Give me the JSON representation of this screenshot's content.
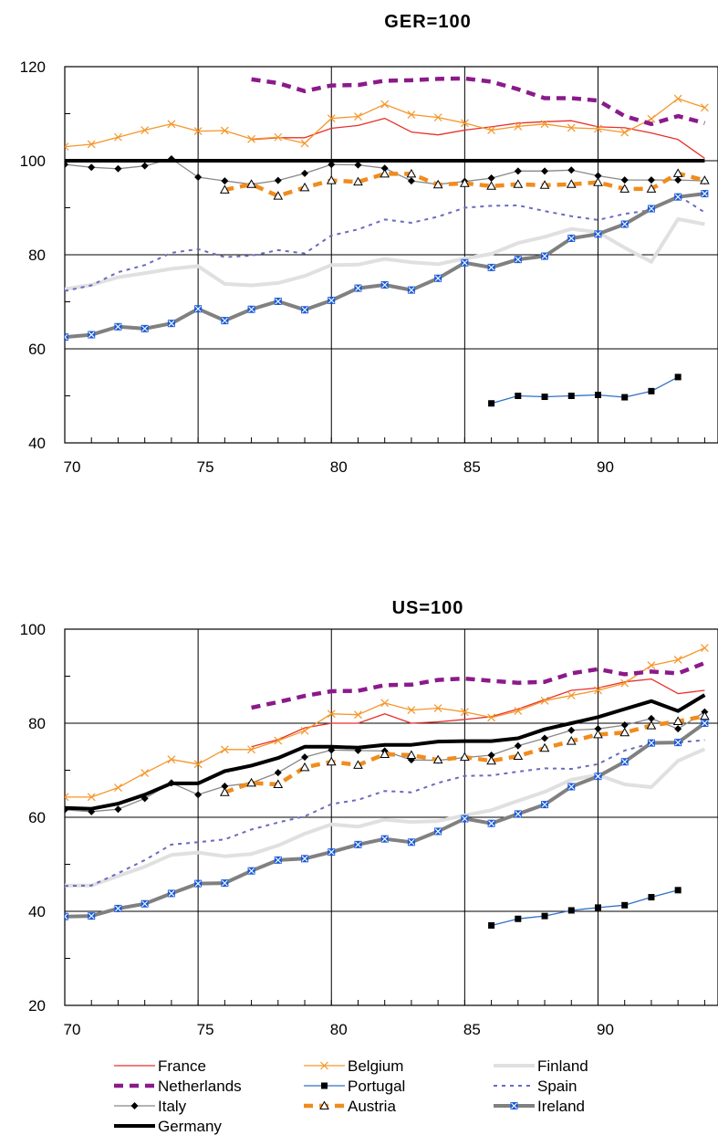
{
  "chart_data": [
    {
      "type": "line",
      "title": "GER=100",
      "xlabel": "",
      "ylabel": "",
      "x_ticks": [
        "70",
        "75",
        "80",
        "85",
        "90"
      ],
      "y_ticks": [
        "40",
        "60",
        "80",
        "100",
        "120"
      ],
      "xlim": [
        70,
        94.5
      ],
      "ylim": [
        40,
        120
      ],
      "grid": true,
      "series": [
        {
          "name": "France",
          "color": "#e8302a",
          "style": "thin",
          "x": [
            77,
            78,
            79,
            80,
            81,
            82,
            83,
            84,
            85,
            86,
            87,
            88,
            89,
            90,
            91,
            92,
            93,
            94
          ],
          "y": [
            104.5,
            104.9,
            104.9,
            106.9,
            107.5,
            109,
            106.1,
            105.5,
            106.5,
            107.2,
            108,
            108.3,
            108.5,
            107.2,
            107,
            105.9,
            104.5,
            100.5
          ]
        },
        {
          "name": "Belgium",
          "color": "#f5962a",
          "style": "thin",
          "marker": "x",
          "x": [
            70,
            71,
            72,
            73,
            74,
            75,
            76,
            77,
            78,
            79,
            80,
            81,
            82,
            83,
            84,
            85,
            86,
            87,
            88,
            89,
            90,
            91,
            92,
            93,
            94
          ],
          "y": [
            103,
            103.5,
            105,
            106.5,
            107.8,
            106.3,
            106.4,
            104.6,
            105,
            103.7,
            109,
            109.4,
            112,
            109.8,
            109.2,
            108,
            106.5,
            107.3,
            107.8,
            107,
            106.8,
            106,
            108.9,
            113.2,
            111.3
          ]
        },
        {
          "name": "Finland",
          "color": "#e0e0e0",
          "style": "thick",
          "x": [
            70,
            71,
            72,
            73,
            74,
            75,
            76,
            77,
            78,
            79,
            80,
            81,
            82,
            83,
            84,
            85,
            86,
            87,
            88,
            89,
            90,
            91,
            92,
            93,
            94
          ],
          "y": [
            72.7,
            73.6,
            75.2,
            76.1,
            77,
            77.6,
            73.8,
            73.5,
            74,
            75.5,
            77.8,
            77.9,
            79.1,
            78.4,
            78,
            79.2,
            80.2,
            82.5,
            83.8,
            85.5,
            84.8,
            81.5,
            78.5,
            87.6,
            86.5
          ]
        },
        {
          "name": "Netherlands",
          "color": "#8b1a8b",
          "style": "dashed-thick",
          "x": [
            77,
            78,
            79,
            80,
            81,
            82,
            83,
            84,
            85,
            86,
            87,
            88,
            89,
            90,
            91,
            92,
            93,
            94
          ],
          "y": [
            117.3,
            116.5,
            114.8,
            116,
            116.1,
            117,
            117.1,
            117.4,
            117.5,
            116.8,
            115.2,
            113.3,
            113.3,
            112.8,
            109.5,
            107.8,
            109.5,
            108
          ]
        },
        {
          "name": "Portugal",
          "color": "#3070c8",
          "style": "thin",
          "marker": "square",
          "x": [
            86,
            87,
            88,
            89,
            90,
            91,
            92,
            93
          ],
          "y": [
            48.4,
            50,
            49.8,
            50,
            50.2,
            49.7,
            51,
            54
          ]
        },
        {
          "name": "Spain",
          "color": "#6a6ac0",
          "style": "dotted",
          "x": [
            70,
            71,
            72,
            73,
            74,
            75,
            76,
            77,
            78,
            79,
            80,
            81,
            82,
            83,
            84,
            85,
            86,
            87,
            88,
            89,
            90,
            91,
            92,
            93,
            94
          ],
          "y": [
            72.3,
            73.5,
            76.3,
            77.8,
            80.4,
            81.2,
            79.5,
            79.8,
            81,
            80.3,
            84.1,
            85.4,
            87.5,
            86.8,
            88.1,
            90,
            90.4,
            90.5,
            89.3,
            88.2,
            87.4,
            88.7,
            89.5,
            92.6,
            89
          ]
        },
        {
          "name": "Italy",
          "color": "#888888",
          "style": "thin",
          "marker": "diamond",
          "x": [
            70,
            71,
            72,
            73,
            74,
            75,
            76,
            77,
            78,
            79,
            80,
            81,
            82,
            83,
            84,
            85,
            86,
            87,
            88,
            89,
            90,
            91,
            92,
            93,
            94
          ],
          "y": [
            99.2,
            98.6,
            98.3,
            98.9,
            100.4,
            96.5,
            95.7,
            95,
            95.8,
            97.3,
            99.2,
            99.1,
            98.4,
            95.7,
            95,
            95.6,
            96.3,
            97.8,
            97.8,
            98,
            96.8,
            95.9,
            95.9,
            95.9,
            95.7
          ]
        },
        {
          "name": "Austria",
          "color": "#f08c1e",
          "style": "dashed-thick",
          "marker": "triangle",
          "x": [
            76,
            77,
            78,
            79,
            80,
            81,
            82,
            83,
            84,
            85,
            86,
            87,
            88,
            89,
            90,
            91,
            92,
            93,
            94
          ],
          "y": [
            93.8,
            95,
            92.5,
            94.3,
            95.8,
            95.5,
            97.2,
            97.2,
            94.9,
            95.2,
            94.6,
            95,
            94.8,
            95,
            95.4,
            94,
            94,
            97.3,
            95.8
          ]
        },
        {
          "name": "Ireland",
          "color": "#808080",
          "style": "thick",
          "marker": "boxx",
          "x": [
            70,
            71,
            72,
            73,
            74,
            75,
            76,
            77,
            78,
            79,
            80,
            81,
            82,
            83,
            84,
            85,
            86,
            87,
            88,
            89,
            90,
            91,
            92,
            93,
            94
          ],
          "y": [
            62.5,
            63,
            64.7,
            64.3,
            65.4,
            68.5,
            66,
            68.4,
            70.1,
            68.3,
            70.3,
            72.9,
            73.6,
            72.5,
            75,
            78.3,
            77.3,
            79,
            79.7,
            83.5,
            84.4,
            86.5,
            89.8,
            92.3,
            93
          ]
        },
        {
          "name": "Germany",
          "color": "#000000",
          "style": "thick",
          "x": [
            70,
            71,
            72,
            73,
            74,
            75,
            76,
            77,
            78,
            79,
            80,
            81,
            82,
            83,
            84,
            85,
            86,
            87,
            88,
            89,
            90,
            91,
            92,
            93,
            94
          ],
          "y": [
            100,
            100,
            100,
            100,
            100,
            100,
            100,
            100,
            100,
            100,
            100,
            100,
            100,
            100,
            100,
            100,
            100,
            100,
            100,
            100,
            100,
            100,
            100,
            100,
            100
          ]
        }
      ]
    },
    {
      "type": "line",
      "title": "US=100",
      "xlabel": "",
      "ylabel": "",
      "x_ticks": [
        "70",
        "75",
        "80",
        "85",
        "90"
      ],
      "y_ticks": [
        "20",
        "40",
        "60",
        "80",
        "100"
      ],
      "xlim": [
        70,
        94.5
      ],
      "ylim": [
        20,
        100
      ],
      "grid": true,
      "series": [
        {
          "name": "France",
          "color": "#e8302a",
          "style": "thin",
          "x": [
            77,
            78,
            79,
            80,
            81,
            82,
            83,
            84,
            85,
            86,
            87,
            88,
            89,
            90,
            91,
            92,
            93,
            94
          ],
          "y": [
            75,
            76.5,
            79,
            80,
            80,
            82,
            80,
            80.3,
            80.8,
            81.4,
            83,
            85,
            87,
            87.5,
            88.8,
            89.4,
            86.3,
            87
          ]
        },
        {
          "name": "Belgium",
          "color": "#f5962a",
          "style": "thin",
          "marker": "x",
          "x": [
            70,
            71,
            72,
            73,
            74,
            75,
            76,
            77,
            78,
            79,
            80,
            81,
            82,
            83,
            84,
            85,
            86,
            87,
            88,
            89,
            90,
            91,
            92,
            93,
            94
          ],
          "y": [
            64.3,
            64.3,
            66.3,
            69.4,
            72.3,
            71.3,
            74.4,
            74.4,
            76.3,
            78.4,
            82,
            81.8,
            84.3,
            82.8,
            83.2,
            82.4,
            81.2,
            82.6,
            84.8,
            85.9,
            87,
            88.5,
            92.3,
            93.5,
            96
          ]
        },
        {
          "name": "Finland",
          "color": "#e0e0e0",
          "style": "thick",
          "x": [
            70,
            71,
            72,
            73,
            74,
            75,
            76,
            77,
            78,
            79,
            80,
            81,
            82,
            83,
            84,
            85,
            86,
            87,
            88,
            89,
            90,
            91,
            92,
            93,
            94
          ],
          "y": [
            45.5,
            45.5,
            47.5,
            49.5,
            52,
            52.5,
            51.7,
            52.2,
            54,
            56.5,
            58.5,
            58,
            59.5,
            59,
            59.2,
            60.4,
            61.5,
            63.5,
            65.4,
            68,
            69,
            67,
            66.4,
            72,
            74.5
          ]
        },
        {
          "name": "Netherlands",
          "color": "#8b1a8b",
          "style": "dashed-thick",
          "x": [
            77,
            78,
            79,
            80,
            81,
            82,
            83,
            84,
            85,
            86,
            87,
            88,
            89,
            90,
            91,
            92,
            93,
            94
          ],
          "y": [
            83.3,
            84.5,
            85.8,
            86.8,
            86.9,
            88.1,
            88.2,
            89.2,
            89.5,
            89,
            88.6,
            88.8,
            90.6,
            91.5,
            90.4,
            91,
            90.6,
            92.8
          ]
        },
        {
          "name": "Portugal",
          "color": "#3070c8",
          "style": "thin",
          "marker": "square",
          "x": [
            86,
            87,
            88,
            89,
            90,
            91,
            92,
            93
          ],
          "y": [
            37,
            38.4,
            39,
            40.2,
            40.8,
            41.3,
            43,
            44.5
          ]
        },
        {
          "name": "Spain",
          "color": "#6a6ac0",
          "style": "dotted",
          "x": [
            70,
            71,
            72,
            73,
            74,
            75,
            76,
            77,
            78,
            79,
            80,
            81,
            82,
            83,
            84,
            85,
            86,
            87,
            88,
            89,
            90,
            91,
            92,
            93,
            94
          ],
          "y": [
            45.4,
            45.5,
            48.1,
            50.9,
            54.2,
            54.7,
            55.3,
            57.4,
            58.9,
            60.2,
            62.8,
            63.7,
            65.6,
            65.3,
            67.3,
            68.8,
            68.9,
            69.7,
            70.4,
            70.3,
            71.3,
            74.2,
            75.7,
            75.9,
            76.4
          ]
        },
        {
          "name": "Italy",
          "color": "#888888",
          "style": "thin",
          "marker": "diamond",
          "x": [
            70,
            71,
            72,
            73,
            74,
            75,
            76,
            77,
            78,
            79,
            80,
            81,
            82,
            83,
            84,
            85,
            86,
            87,
            88,
            89,
            90,
            91,
            92,
            93,
            94
          ],
          "y": [
            61.6,
            61.2,
            61.7,
            64,
            67.3,
            64.8,
            66.6,
            67.3,
            69.5,
            72.8,
            74.3,
            74.2,
            74.1,
            72.2,
            72.1,
            72.7,
            73.2,
            75.2,
            76.8,
            78.5,
            78.8,
            79.6,
            81,
            78.8,
            82.4
          ]
        },
        {
          "name": "Austria",
          "color": "#f08c1e",
          "style": "dashed-thick",
          "marker": "triangle",
          "x": [
            76,
            77,
            78,
            79,
            80,
            81,
            82,
            83,
            84,
            85,
            86,
            87,
            88,
            89,
            90,
            91,
            92,
            93,
            94
          ],
          "y": [
            65.3,
            67.3,
            67,
            70.6,
            71.8,
            71.1,
            73.4,
            73.2,
            72.2,
            72.8,
            72,
            73,
            74.7,
            76.2,
            77.6,
            78,
            79.5,
            80.4,
            81.5
          ]
        },
        {
          "name": "Ireland",
          "color": "#808080",
          "style": "thick",
          "marker": "boxx",
          "x": [
            70,
            71,
            72,
            73,
            74,
            75,
            76,
            77,
            78,
            79,
            80,
            81,
            82,
            83,
            84,
            85,
            86,
            87,
            88,
            89,
            90,
            91,
            92,
            93,
            94
          ],
          "y": [
            38.9,
            39,
            40.6,
            41.6,
            43.8,
            45.9,
            46,
            48.6,
            50.9,
            51.2,
            52.6,
            54.2,
            55.4,
            54.7,
            57,
            59.7,
            58.7,
            60.7,
            62.7,
            66.5,
            68.7,
            71.8,
            75.8,
            75.9,
            80
          ]
        },
        {
          "name": "Germany",
          "color": "#000000",
          "style": "thick",
          "x": [
            70,
            71,
            72,
            73,
            74,
            75,
            76,
            77,
            78,
            79,
            80,
            81,
            82,
            83,
            84,
            85,
            86,
            87,
            88,
            89,
            90,
            91,
            92,
            93,
            94
          ],
          "y": [
            62,
            61.8,
            62.9,
            64.8,
            67.2,
            67.2,
            69.8,
            71,
            72.6,
            75,
            75,
            74.8,
            75.4,
            75.4,
            76.1,
            76.2,
            76.2,
            76.8,
            78.7,
            80,
            81.3,
            83,
            84.7,
            82.6,
            86
          ]
        }
      ]
    }
  ],
  "legend": {
    "placement": "bottom",
    "items": [
      "France",
      "Belgium",
      "Finland",
      "Netherlands",
      "Portugal",
      "Spain",
      "Italy",
      "Austria",
      "Ireland",
      "Germany"
    ]
  }
}
